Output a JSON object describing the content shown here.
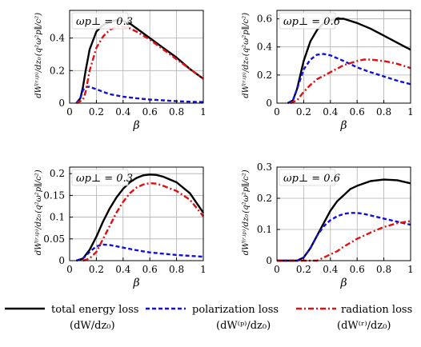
{
  "colors": {
    "total": "#000000",
    "polarization": "#1010e0",
    "radiation": "#e01010",
    "grid": "#b0b0b0"
  },
  "legend": [
    {
      "key": "total",
      "label": "total energy loss",
      "sublabel": "(dW/dz₀)"
    },
    {
      "key": "polarization",
      "label": "polarization loss",
      "sublabel": "(dW⁽ᵖ⁾/dz₀)"
    },
    {
      "key": "radiation",
      "label": "radiation loss",
      "sublabel": "(dW⁽ʳ⁾/dz₀)"
    }
  ],
  "ylabel": {
    "prefix": "dW⁽ʳʴᵖ⁾/dz₀",
    "factor": "(q²ω²p∥/c²)"
  },
  "chart_data": [
    {
      "type": "line",
      "annotation": "ωp⊥ = 0.3",
      "xlabel": "β",
      "xlim": [
        0,
        1
      ],
      "ylim": [
        0,
        0.57
      ],
      "xticks": [
        0,
        0.2,
        0.4,
        0.6,
        0.8,
        1
      ],
      "xticklabels": [
        "0",
        "0.2",
        "0.4",
        "0.6",
        "0.8",
        "1"
      ],
      "yticks": [
        0,
        0.2,
        0.4
      ],
      "yticklabels": [
        "0",
        "0.2",
        "0.4"
      ],
      "grid": true,
      "series": [
        {
          "key": "total",
          "x": [
            0.05,
            0.08,
            0.1,
            0.12,
            0.15,
            0.2,
            0.25,
            0.3,
            0.35,
            0.4,
            0.45,
            0.5,
            0.6,
            0.7,
            0.8,
            0.9,
            1.0
          ],
          "y": [
            0,
            0.03,
            0.1,
            0.2,
            0.33,
            0.44,
            0.48,
            0.5,
            0.51,
            0.505,
            0.49,
            0.46,
            0.4,
            0.34,
            0.28,
            0.21,
            0.15
          ]
        },
        {
          "key": "polarization",
          "x": [
            0.05,
            0.08,
            0.1,
            0.12,
            0.15,
            0.2,
            0.25,
            0.3,
            0.4,
            0.5,
            0.6,
            0.7,
            0.8,
            0.9,
            1.0
          ],
          "y": [
            0,
            0.03,
            0.08,
            0.1,
            0.1,
            0.085,
            0.07,
            0.055,
            0.04,
            0.03,
            0.022,
            0.017,
            0.012,
            0.009,
            0.007
          ]
        },
        {
          "key": "radiation",
          "x": [
            0.05,
            0.1,
            0.12,
            0.15,
            0.2,
            0.25,
            0.3,
            0.35,
            0.4,
            0.45,
            0.5,
            0.6,
            0.7,
            0.8,
            0.9,
            1.0
          ],
          "y": [
            0,
            0.02,
            0.07,
            0.2,
            0.34,
            0.41,
            0.45,
            0.47,
            0.47,
            0.46,
            0.44,
            0.39,
            0.33,
            0.27,
            0.21,
            0.15
          ]
        }
      ]
    },
    {
      "type": "line",
      "annotation": "ωp⊥ = 0.6",
      "xlabel": "β",
      "xlim": [
        0,
        1
      ],
      "ylim": [
        0,
        0.66
      ],
      "xticks": [
        0,
        0.2,
        0.4,
        0.6,
        0.8,
        1
      ],
      "xticklabels": [
        "0",
        "0.2",
        "0.4",
        "0.6",
        "0.8",
        "1"
      ],
      "yticks": [
        0,
        0.2,
        0.4,
        0.6
      ],
      "yticklabels": [
        "0",
        "0.2",
        "0.4",
        "0.6"
      ],
      "grid": true,
      "series": [
        {
          "key": "total",
          "x": [
            0.08,
            0.12,
            0.15,
            0.2,
            0.25,
            0.3,
            0.35,
            0.4,
            0.45,
            0.5,
            0.6,
            0.7,
            0.8,
            0.9,
            1.0
          ],
          "y": [
            0,
            0.02,
            0.1,
            0.3,
            0.44,
            0.52,
            0.57,
            0.59,
            0.6,
            0.6,
            0.57,
            0.53,
            0.48,
            0.43,
            0.38
          ]
        },
        {
          "key": "polarization",
          "x": [
            0.08,
            0.12,
            0.15,
            0.2,
            0.25,
            0.3,
            0.35,
            0.4,
            0.5,
            0.6,
            0.7,
            0.8,
            0.9,
            1.0
          ],
          "y": [
            0,
            0.02,
            0.1,
            0.24,
            0.31,
            0.345,
            0.35,
            0.34,
            0.3,
            0.255,
            0.22,
            0.19,
            0.16,
            0.135
          ]
        },
        {
          "key": "radiation",
          "x": [
            0.1,
            0.15,
            0.2,
            0.25,
            0.3,
            0.4,
            0.5,
            0.6,
            0.65,
            0.7,
            0.8,
            0.9,
            1.0
          ],
          "y": [
            0,
            0.02,
            0.08,
            0.13,
            0.17,
            0.22,
            0.27,
            0.3,
            0.31,
            0.31,
            0.3,
            0.28,
            0.25
          ]
        }
      ]
    },
    {
      "type": "line",
      "annotation": "ωp⊥ = 0.3",
      "xlabel": "β",
      "xlim": [
        0,
        1
      ],
      "ylim": [
        0,
        0.215
      ],
      "xticks": [
        0,
        0.2,
        0.4,
        0.6,
        0.8,
        1
      ],
      "xticklabels": [
        "0",
        "0.2",
        "0.4",
        "0.6",
        "0.8",
        "1"
      ],
      "yticks": [
        0,
        0.05,
        0.1,
        0.15,
        0.2
      ],
      "yticklabels": [
        "0",
        "0.05",
        "0.1",
        "0.15",
        "0.2"
      ],
      "grid": true,
      "series": [
        {
          "key": "total",
          "x": [
            0.05,
            0.1,
            0.15,
            0.2,
            0.25,
            0.3,
            0.35,
            0.4,
            0.45,
            0.5,
            0.55,
            0.6,
            0.65,
            0.7,
            0.8,
            0.9,
            1.0
          ],
          "y": [
            0,
            0.005,
            0.025,
            0.055,
            0.09,
            0.12,
            0.145,
            0.165,
            0.18,
            0.19,
            0.196,
            0.198,
            0.197,
            0.193,
            0.18,
            0.155,
            0.11
          ]
        },
        {
          "key": "polarization",
          "x": [
            0.05,
            0.1,
            0.15,
            0.2,
            0.25,
            0.3,
            0.4,
            0.5,
            0.6,
            0.7,
            0.8,
            0.9,
            1.0
          ],
          "y": [
            0,
            0.005,
            0.02,
            0.033,
            0.037,
            0.036,
            0.03,
            0.024,
            0.019,
            0.016,
            0.013,
            0.011,
            0.009
          ]
        },
        {
          "key": "radiation",
          "x": [
            0.1,
            0.15,
            0.2,
            0.25,
            0.3,
            0.35,
            0.4,
            0.45,
            0.5,
            0.55,
            0.6,
            0.65,
            0.7,
            0.8,
            0.9,
            1.0
          ],
          "y": [
            0,
            0.005,
            0.02,
            0.05,
            0.08,
            0.11,
            0.135,
            0.155,
            0.168,
            0.175,
            0.178,
            0.177,
            0.172,
            0.16,
            0.14,
            0.102
          ]
        }
      ]
    },
    {
      "type": "line",
      "annotation": "ωp⊥ = 0.6",
      "xlabel": "β",
      "xlim": [
        0,
        1
      ],
      "ylim": [
        0,
        0.3
      ],
      "xticks": [
        0,
        0.2,
        0.4,
        0.6,
        0.8,
        1
      ],
      "xticklabels": [
        "0",
        "0.2",
        "0.4",
        "0.6",
        "0.8",
        "1"
      ],
      "yticks": [
        0,
        0.1,
        0.2,
        0.3
      ],
      "yticklabels": [
        "0",
        "0.1",
        "0.2",
        "0.3"
      ],
      "grid": true,
      "series": [
        {
          "key": "total",
          "x": [
            0,
            0.15,
            0.2,
            0.25,
            0.3,
            0.35,
            0.4,
            0.45,
            0.5,
            0.55,
            0.6,
            0.7,
            0.8,
            0.9,
            1.0
          ],
          "y": [
            0,
            0,
            0.01,
            0.04,
            0.08,
            0.12,
            0.16,
            0.19,
            0.21,
            0.23,
            0.24,
            0.255,
            0.26,
            0.258,
            0.248
          ]
        },
        {
          "key": "polarization",
          "x": [
            0,
            0.15,
            0.2,
            0.25,
            0.3,
            0.35,
            0.4,
            0.45,
            0.5,
            0.55,
            0.6,
            0.65,
            0.7,
            0.8,
            0.9,
            1.0
          ],
          "y": [
            0,
            0,
            0.01,
            0.04,
            0.08,
            0.11,
            0.13,
            0.142,
            0.15,
            0.153,
            0.153,
            0.15,
            0.145,
            0.135,
            0.125,
            0.115
          ]
        },
        {
          "key": "radiation",
          "x": [
            0,
            0.3,
            0.35,
            0.4,
            0.45,
            0.5,
            0.6,
            0.7,
            0.8,
            0.9,
            1.0
          ],
          "y": [
            0,
            0,
            0.01,
            0.02,
            0.03,
            0.045,
            0.07,
            0.09,
            0.108,
            0.12,
            0.127
          ]
        }
      ]
    }
  ]
}
